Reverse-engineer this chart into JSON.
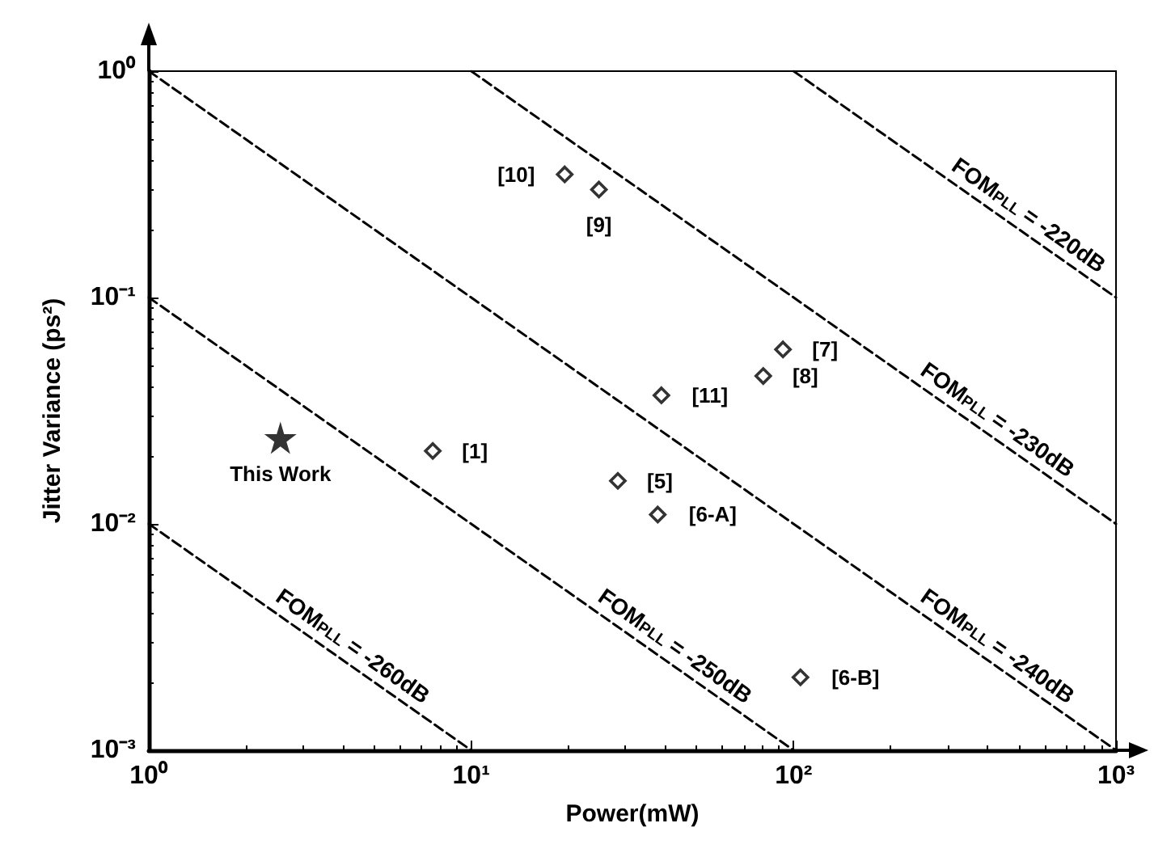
{
  "chart_data": {
    "type": "scatter",
    "xlabel": "Power(mW)",
    "ylabel": "Jitter Variance (ps²)",
    "log": "xy",
    "grid": false,
    "xlim": [
      1,
      1000
    ],
    "xticks": [
      {
        "value": 1,
        "label": "10⁰"
      },
      {
        "value": 10,
        "label": "10¹"
      },
      {
        "value": 100,
        "label": "10²"
      },
      {
        "value": 1000,
        "label": "10³"
      }
    ],
    "ylim": [
      0.001,
      1
    ],
    "yticks": [
      {
        "value": 0.001,
        "label": "10⁻³"
      },
      {
        "value": 0.01,
        "label": "10⁻²"
      },
      {
        "value": 0.1,
        "label": "10⁻¹"
      },
      {
        "value": 1,
        "label": "10⁰"
      }
    ],
    "series": [
      {
        "marker": "diamond",
        "color": "#000000",
        "x": [
          19.5,
          24.9,
          7.6,
          92.7,
          80.5,
          38.9,
          28.5,
          37.9,
          105
        ],
        "values": [
          0.35,
          0.3,
          0.021,
          0.059,
          0.045,
          0.037,
          0.0155,
          0.011,
          0.0021
        ]
      },
      {
        "marker": "star",
        "color": "#000000",
        "x": [
          2.56
        ],
        "values": [
          0.024
        ]
      },
      {
        "type": "line",
        "marker": "none",
        "line_style": "dashed",
        "color": "#000000",
        "x": [
          100,
          1000
        ],
        "values": [
          1,
          0.1
        ]
      },
      {
        "type": "line",
        "marker": "none",
        "line_style": "dashed",
        "color": "#000000",
        "x": [
          10,
          1000
        ],
        "values": [
          1,
          0.01
        ]
      },
      {
        "type": "line",
        "marker": "none",
        "line_style": "dashed",
        "color": "#000000",
        "x": [
          1,
          1000
        ],
        "values": [
          1,
          0.001
        ]
      },
      {
        "type": "line",
        "marker": "none",
        "line_style": "dashed",
        "color": "#000000",
        "x": [
          1,
          100
        ],
        "values": [
          0.1,
          0.001
        ]
      },
      {
        "type": "line",
        "marker": "none",
        "line_style": "dashed",
        "color": "#000000",
        "x": [
          1,
          10
        ],
        "values": [
          0.01,
          0.001
        ]
      }
    ],
    "annotations": [
      {
        "text": "[10]",
        "x": 19.5,
        "y": 0.35
      },
      {
        "text": "[9]",
        "x": 24.9,
        "y": 0.3
      },
      {
        "text": "[1]",
        "x": 7.6,
        "y": 0.021
      },
      {
        "text": "[7]",
        "x": 92.7,
        "y": 0.059
      },
      {
        "text": "[8]",
        "x": 80.5,
        "y": 0.045
      },
      {
        "text": "[11]",
        "x": 38.9,
        "y": 0.037
      },
      {
        "text": "[5]",
        "x": 28.5,
        "y": 0.0155
      },
      {
        "text": "[6-A]",
        "x": 37.9,
        "y": 0.011
      },
      {
        "text": "[6-B]",
        "x": 105,
        "y": 0.0021
      },
      {
        "text": "This Work",
        "x": 2.56,
        "y": 0.024
      },
      {
        "text": "FOM$_{PLL}$ = -220dB",
        "x": 500,
        "y": 0.2
      },
      {
        "text": "FOM$_{PLL}$ = -230dB",
        "x": 400,
        "y": 0.025
      },
      {
        "text": "FOM$_{PLL}$ = -240dB",
        "x": 400,
        "y": 0.0025
      },
      {
        "text": "FOM$_{PLL}$ = -250dB",
        "x": 40,
        "y": 0.0025
      },
      {
        "text": "FOM$_{PLL}$ = -260dB",
        "x": 4,
        "y": 0.0025
      }
    ]
  }
}
